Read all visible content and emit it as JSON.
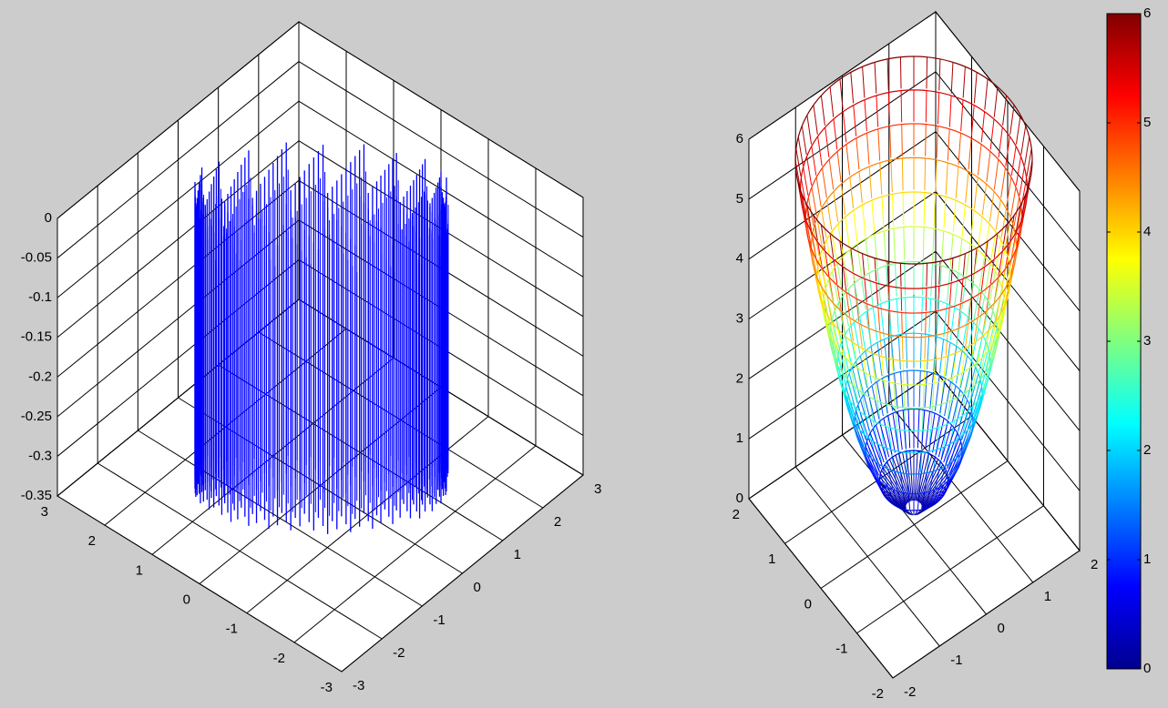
{
  "chart_data": [
    {
      "type": "stem3",
      "xlim": [
        -3,
        3
      ],
      "ylim": [
        -3,
        3
      ],
      "zlim": [
        -0.35,
        0
      ],
      "xticks": [
        -3,
        -2,
        -1,
        0,
        1,
        2,
        3
      ],
      "yticks": [
        -3,
        -2,
        -1,
        0,
        1,
        2,
        3
      ],
      "zticks": [
        -0.35,
        -0.3,
        -0.25,
        -0.2,
        -0.15,
        -0.1,
        -0.05,
        0
      ],
      "color": "#0000ff",
      "grid": true
    },
    {
      "type": "mesh3",
      "xlim": [
        -2,
        2
      ],
      "ylim": [
        -2,
        2
      ],
      "zlim": [
        0,
        6
      ],
      "xticks": [
        -2,
        -1,
        0,
        1,
        2
      ],
      "yticks": [
        -2,
        -1,
        0,
        1,
        2
      ],
      "zticks": [
        0,
        1,
        2,
        3,
        4,
        5,
        6
      ],
      "colormap": "jet",
      "clim": [
        0,
        6
      ],
      "colorbar_ticks": [
        0,
        1,
        2,
        3,
        4,
        5,
        6
      ],
      "grid": true
    }
  ]
}
